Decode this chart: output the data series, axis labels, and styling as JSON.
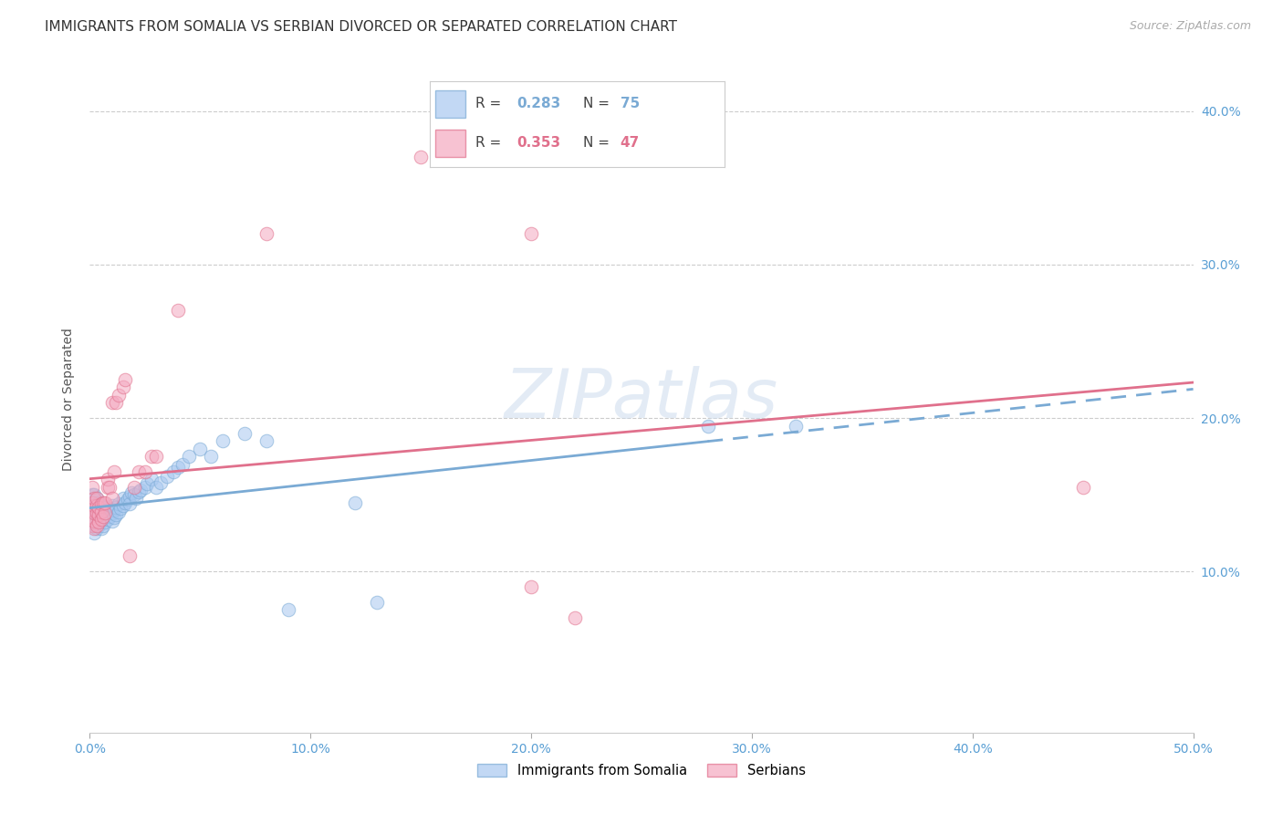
{
  "title": "IMMIGRANTS FROM SOMALIA VS SERBIAN DIVORCED OR SEPARATED CORRELATION CHART",
  "source": "Source: ZipAtlas.com",
  "ylabel": "Divorced or Separated",
  "xlim": [
    0.0,
    0.5
  ],
  "ylim": [
    -0.005,
    0.43
  ],
  "watermark": "ZIPatlas",
  "somalia_color": "#a8c8f0",
  "somalia_edge_color": "#7aaad4",
  "serbian_color": "#f4a8c0",
  "serbian_edge_color": "#e0708c",
  "trendline_somalia_color": "#7aaad4",
  "trendline_serbian_color": "#e0708c",
  "background_color": "#ffffff",
  "grid_color": "#cccccc",
  "title_fontsize": 11,
  "axis_label_fontsize": 10,
  "tick_fontsize": 10,
  "right_tick_color": "#5a9fd4",
  "legend_R1": "0.283",
  "legend_N1": "75",
  "legend_R2": "0.353",
  "legend_N2": "47",
  "somalia_x": [
    0.001,
    0.001,
    0.001,
    0.001,
    0.001,
    0.002,
    0.002,
    0.002,
    0.002,
    0.002,
    0.002,
    0.003,
    0.003,
    0.003,
    0.003,
    0.003,
    0.004,
    0.004,
    0.004,
    0.004,
    0.005,
    0.005,
    0.005,
    0.005,
    0.006,
    0.006,
    0.006,
    0.007,
    0.007,
    0.007,
    0.008,
    0.008,
    0.009,
    0.009,
    0.01,
    0.01,
    0.01,
    0.011,
    0.011,
    0.012,
    0.012,
    0.013,
    0.013,
    0.014,
    0.015,
    0.015,
    0.016,
    0.017,
    0.018,
    0.018,
    0.019,
    0.02,
    0.021,
    0.022,
    0.023,
    0.025,
    0.026,
    0.028,
    0.03,
    0.032,
    0.035,
    0.038,
    0.04,
    0.042,
    0.045,
    0.05,
    0.055,
    0.06,
    0.07,
    0.08,
    0.09,
    0.12,
    0.13,
    0.28,
    0.32
  ],
  "somalia_y": [
    0.13,
    0.135,
    0.14,
    0.145,
    0.15,
    0.125,
    0.13,
    0.135,
    0.14,
    0.145,
    0.15,
    0.128,
    0.133,
    0.138,
    0.143,
    0.148,
    0.13,
    0.135,
    0.14,
    0.145,
    0.128,
    0.133,
    0.138,
    0.143,
    0.13,
    0.135,
    0.14,
    0.132,
    0.137,
    0.142,
    0.134,
    0.139,
    0.136,
    0.141,
    0.133,
    0.138,
    0.143,
    0.135,
    0.14,
    0.137,
    0.142,
    0.139,
    0.144,
    0.141,
    0.143,
    0.148,
    0.145,
    0.147,
    0.149,
    0.144,
    0.151,
    0.15,
    0.148,
    0.152,
    0.153,
    0.155,
    0.157,
    0.16,
    0.155,
    0.158,
    0.162,
    0.165,
    0.168,
    0.17,
    0.175,
    0.18,
    0.175,
    0.185,
    0.19,
    0.185,
    0.075,
    0.145,
    0.08,
    0.195,
    0.195
  ],
  "serbian_x": [
    0.001,
    0.001,
    0.001,
    0.001,
    0.001,
    0.002,
    0.002,
    0.002,
    0.002,
    0.002,
    0.003,
    0.003,
    0.003,
    0.003,
    0.004,
    0.004,
    0.004,
    0.005,
    0.005,
    0.005,
    0.006,
    0.006,
    0.007,
    0.007,
    0.008,
    0.008,
    0.009,
    0.01,
    0.01,
    0.011,
    0.012,
    0.013,
    0.015,
    0.016,
    0.018,
    0.02,
    0.022,
    0.025,
    0.028,
    0.03,
    0.04,
    0.08,
    0.15,
    0.2,
    0.45,
    0.2,
    0.22
  ],
  "serbian_y": [
    0.13,
    0.135,
    0.14,
    0.145,
    0.155,
    0.128,
    0.133,
    0.138,
    0.143,
    0.148,
    0.13,
    0.138,
    0.143,
    0.148,
    0.132,
    0.137,
    0.142,
    0.134,
    0.139,
    0.144,
    0.136,
    0.145,
    0.138,
    0.145,
    0.155,
    0.16,
    0.155,
    0.148,
    0.21,
    0.165,
    0.21,
    0.215,
    0.22,
    0.225,
    0.11,
    0.155,
    0.165,
    0.165,
    0.175,
    0.175,
    0.27,
    0.32,
    0.37,
    0.32,
    0.155,
    0.09,
    0.07
  ]
}
